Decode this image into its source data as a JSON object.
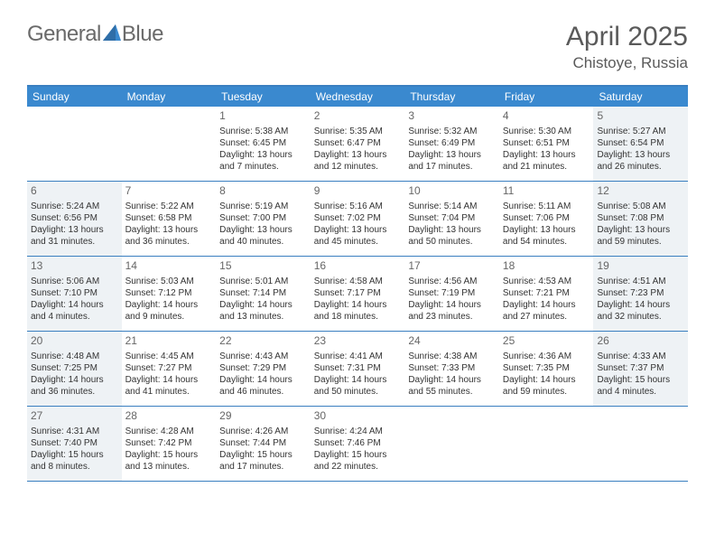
{
  "brand": {
    "part1": "General",
    "part2": "Blue"
  },
  "title": "April 2025",
  "location": "Chistoye, Russia",
  "colors": {
    "header_bar": "#3a89cf",
    "rule": "#3a7fc0",
    "logo_triangle": "#3a89cf",
    "shade": "#eef2f5",
    "text": "#333333"
  },
  "days_of_week": [
    "Sunday",
    "Monday",
    "Tuesday",
    "Wednesday",
    "Thursday",
    "Friday",
    "Saturday"
  ],
  "weeks": [
    [
      {
        "n": "",
        "sr": "",
        "ss": "",
        "dl": ""
      },
      {
        "n": "",
        "sr": "",
        "ss": "",
        "dl": ""
      },
      {
        "n": "1",
        "sr": "Sunrise: 5:38 AM",
        "ss": "Sunset: 6:45 PM",
        "dl": "Daylight: 13 hours and 7 minutes."
      },
      {
        "n": "2",
        "sr": "Sunrise: 5:35 AM",
        "ss": "Sunset: 6:47 PM",
        "dl": "Daylight: 13 hours and 12 minutes."
      },
      {
        "n": "3",
        "sr": "Sunrise: 5:32 AM",
        "ss": "Sunset: 6:49 PM",
        "dl": "Daylight: 13 hours and 17 minutes."
      },
      {
        "n": "4",
        "sr": "Sunrise: 5:30 AM",
        "ss": "Sunset: 6:51 PM",
        "dl": "Daylight: 13 hours and 21 minutes."
      },
      {
        "n": "5",
        "sr": "Sunrise: 5:27 AM",
        "ss": "Sunset: 6:54 PM",
        "dl": "Daylight: 13 hours and 26 minutes."
      }
    ],
    [
      {
        "n": "6",
        "sr": "Sunrise: 5:24 AM",
        "ss": "Sunset: 6:56 PM",
        "dl": "Daylight: 13 hours and 31 minutes."
      },
      {
        "n": "7",
        "sr": "Sunrise: 5:22 AM",
        "ss": "Sunset: 6:58 PM",
        "dl": "Daylight: 13 hours and 36 minutes."
      },
      {
        "n": "8",
        "sr": "Sunrise: 5:19 AM",
        "ss": "Sunset: 7:00 PM",
        "dl": "Daylight: 13 hours and 40 minutes."
      },
      {
        "n": "9",
        "sr": "Sunrise: 5:16 AM",
        "ss": "Sunset: 7:02 PM",
        "dl": "Daylight: 13 hours and 45 minutes."
      },
      {
        "n": "10",
        "sr": "Sunrise: 5:14 AM",
        "ss": "Sunset: 7:04 PM",
        "dl": "Daylight: 13 hours and 50 minutes."
      },
      {
        "n": "11",
        "sr": "Sunrise: 5:11 AM",
        "ss": "Sunset: 7:06 PM",
        "dl": "Daylight: 13 hours and 54 minutes."
      },
      {
        "n": "12",
        "sr": "Sunrise: 5:08 AM",
        "ss": "Sunset: 7:08 PM",
        "dl": "Daylight: 13 hours and 59 minutes."
      }
    ],
    [
      {
        "n": "13",
        "sr": "Sunrise: 5:06 AM",
        "ss": "Sunset: 7:10 PM",
        "dl": "Daylight: 14 hours and 4 minutes."
      },
      {
        "n": "14",
        "sr": "Sunrise: 5:03 AM",
        "ss": "Sunset: 7:12 PM",
        "dl": "Daylight: 14 hours and 9 minutes."
      },
      {
        "n": "15",
        "sr": "Sunrise: 5:01 AM",
        "ss": "Sunset: 7:14 PM",
        "dl": "Daylight: 14 hours and 13 minutes."
      },
      {
        "n": "16",
        "sr": "Sunrise: 4:58 AM",
        "ss": "Sunset: 7:17 PM",
        "dl": "Daylight: 14 hours and 18 minutes."
      },
      {
        "n": "17",
        "sr": "Sunrise: 4:56 AM",
        "ss": "Sunset: 7:19 PM",
        "dl": "Daylight: 14 hours and 23 minutes."
      },
      {
        "n": "18",
        "sr": "Sunrise: 4:53 AM",
        "ss": "Sunset: 7:21 PM",
        "dl": "Daylight: 14 hours and 27 minutes."
      },
      {
        "n": "19",
        "sr": "Sunrise: 4:51 AM",
        "ss": "Sunset: 7:23 PM",
        "dl": "Daylight: 14 hours and 32 minutes."
      }
    ],
    [
      {
        "n": "20",
        "sr": "Sunrise: 4:48 AM",
        "ss": "Sunset: 7:25 PM",
        "dl": "Daylight: 14 hours and 36 minutes."
      },
      {
        "n": "21",
        "sr": "Sunrise: 4:45 AM",
        "ss": "Sunset: 7:27 PM",
        "dl": "Daylight: 14 hours and 41 minutes."
      },
      {
        "n": "22",
        "sr": "Sunrise: 4:43 AM",
        "ss": "Sunset: 7:29 PM",
        "dl": "Daylight: 14 hours and 46 minutes."
      },
      {
        "n": "23",
        "sr": "Sunrise: 4:41 AM",
        "ss": "Sunset: 7:31 PM",
        "dl": "Daylight: 14 hours and 50 minutes."
      },
      {
        "n": "24",
        "sr": "Sunrise: 4:38 AM",
        "ss": "Sunset: 7:33 PM",
        "dl": "Daylight: 14 hours and 55 minutes."
      },
      {
        "n": "25",
        "sr": "Sunrise: 4:36 AM",
        "ss": "Sunset: 7:35 PM",
        "dl": "Daylight: 14 hours and 59 minutes."
      },
      {
        "n": "26",
        "sr": "Sunrise: 4:33 AM",
        "ss": "Sunset: 7:37 PM",
        "dl": "Daylight: 15 hours and 4 minutes."
      }
    ],
    [
      {
        "n": "27",
        "sr": "Sunrise: 4:31 AM",
        "ss": "Sunset: 7:40 PM",
        "dl": "Daylight: 15 hours and 8 minutes."
      },
      {
        "n": "28",
        "sr": "Sunrise: 4:28 AM",
        "ss": "Sunset: 7:42 PM",
        "dl": "Daylight: 15 hours and 13 minutes."
      },
      {
        "n": "29",
        "sr": "Sunrise: 4:26 AM",
        "ss": "Sunset: 7:44 PM",
        "dl": "Daylight: 15 hours and 17 minutes."
      },
      {
        "n": "30",
        "sr": "Sunrise: 4:24 AM",
        "ss": "Sunset: 7:46 PM",
        "dl": "Daylight: 15 hours and 22 minutes."
      },
      {
        "n": "",
        "sr": "",
        "ss": "",
        "dl": ""
      },
      {
        "n": "",
        "sr": "",
        "ss": "",
        "dl": ""
      },
      {
        "n": "",
        "sr": "",
        "ss": "",
        "dl": ""
      }
    ]
  ]
}
